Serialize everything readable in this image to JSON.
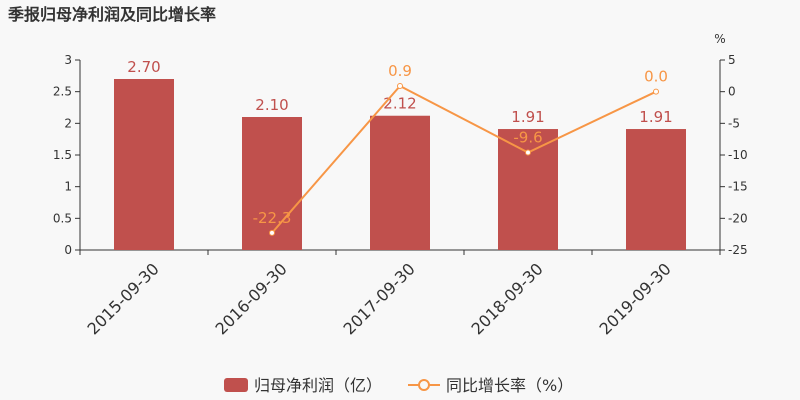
{
  "chart_data": {
    "type": "bar",
    "title": "季报归母净利润及同比增长率",
    "categories": [
      "2015-09-30",
      "2016-09-30",
      "2017-09-30",
      "2018-09-30",
      "2019-09-30"
    ],
    "series": [
      {
        "name": "归母净利润（亿）",
        "type": "bar",
        "axis": "left",
        "values": [
          2.7,
          2.1,
          2.12,
          1.91,
          1.91
        ],
        "labels": [
          "2.70",
          "2.10",
          "2.12",
          "1.91",
          "1.91"
        ]
      },
      {
        "name": "同比增长率（%）",
        "type": "line",
        "axis": "right",
        "values": [
          null,
          -22.3,
          0.9,
          -9.6,
          0.0
        ],
        "labels": [
          "",
          "-22.3",
          "0.9",
          "-9.6",
          "0.0"
        ]
      }
    ],
    "y_left": {
      "range": [
        0,
        3
      ],
      "ticks": [
        "0",
        "0.5",
        "1",
        "1.5",
        "2",
        "2.5",
        "3"
      ]
    },
    "y_right": {
      "unit": "%",
      "range": [
        -25,
        5
      ],
      "ticks": [
        "-25",
        "-20",
        "-15",
        "-10",
        "-5",
        "0",
        "5"
      ]
    },
    "legend_position": "bottom-center",
    "grid": false,
    "colors": {
      "bar": "#c0504d",
      "line": "#f79646",
      "bar_label": "#c0504d",
      "line_label": "#f79646"
    }
  }
}
